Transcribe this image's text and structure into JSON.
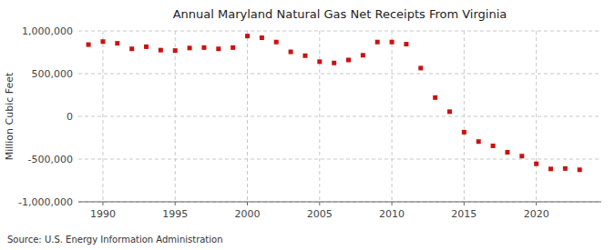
{
  "chart_data": {
    "type": "scatter",
    "title": "Annual Maryland Natural Gas Net Receipts From Virginia",
    "ylabel": "Million Cubic Feet",
    "source": "Source: U.S. Energy Information Administration",
    "x": [
      1989,
      1990,
      1991,
      1992,
      1993,
      1994,
      1995,
      1996,
      1997,
      1998,
      1999,
      2000,
      2001,
      2002,
      2003,
      2004,
      2005,
      2006,
      2007,
      2008,
      2009,
      2010,
      2011,
      2012,
      2013,
      2014,
      2015,
      2016,
      2017,
      2018,
      2019,
      2020,
      2021,
      2022,
      2023
    ],
    "values": [
      840000,
      875000,
      855000,
      790000,
      815000,
      775000,
      770000,
      800000,
      805000,
      790000,
      805000,
      940000,
      920000,
      870000,
      755000,
      710000,
      640000,
      625000,
      660000,
      715000,
      870000,
      870000,
      845000,
      565000,
      220000,
      55000,
      -185000,
      -295000,
      -345000,
      -420000,
      -465000,
      -555000,
      -615000,
      -610000,
      -625000
    ],
    "color": "#cc1111",
    "marker": "square",
    "xlim": [
      1988.3,
      2024.5
    ],
    "xticks": [
      1990,
      1995,
      2000,
      2005,
      2010,
      2015,
      2020
    ],
    "ylim": [
      -1000000,
      1000000
    ],
    "yticks": [
      {
        "value": -1000000,
        "label": "-1,000,000"
      },
      {
        "value": -500000,
        "label": "-500,000"
      },
      0,
      {
        "value": 500000,
        "label": "500,000"
      },
      {
        "value": 1000000,
        "label": "1,000,000"
      }
    ],
    "grid": true
  }
}
